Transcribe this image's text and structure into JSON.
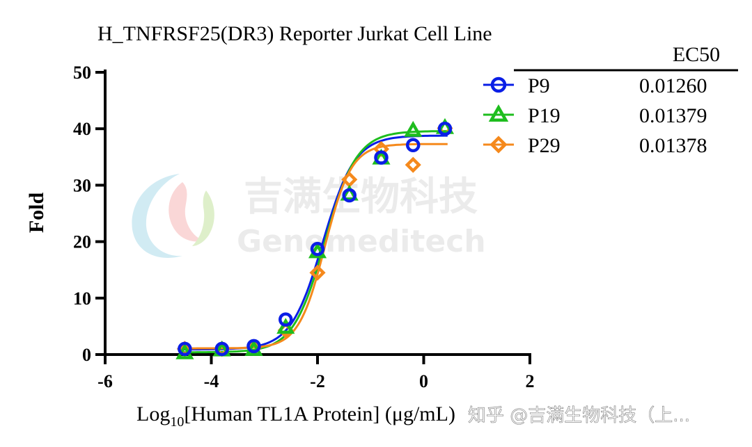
{
  "chart_data": {
    "type": "scatter",
    "title": "H_TNFRSF25(DR3) Reporter Jurkat Cell Line",
    "xlabel_prefix": "Log",
    "xlabel_sub": "10",
    "xlabel_rest": "[Human TL1A Protein] (μg/mL)",
    "ylabel": "Fold",
    "xlim": [
      -6,
      2
    ],
    "ylim": [
      0,
      50
    ],
    "x_ticks": [
      "-6",
      "-4",
      "-2",
      "0",
      "2"
    ],
    "y_ticks": [
      "0",
      "10",
      "20",
      "30",
      "40",
      "50"
    ],
    "legend_header": "EC50",
    "legend_position": "top-right",
    "series": [
      {
        "name": "P9",
        "ec50": "0.01260",
        "color": "#0a1ee6",
        "marker": "circle",
        "x": [
          -4.5,
          -3.8,
          -3.2,
          -2.6,
          -2.0,
          -1.4,
          -0.8,
          -0.2,
          0.4
        ],
        "y": [
          1.0,
          1.0,
          1.5,
          6.2,
          18.7,
          28.2,
          34.9,
          37.1,
          40.0
        ],
        "fit": {
          "bottom": 0.9,
          "top": 38.8,
          "logec50": -1.9,
          "hill": 1.45
        }
      },
      {
        "name": "P19",
        "ec50": "0.01379",
        "color": "#1ebd1e",
        "marker": "triangle",
        "x": [
          -4.5,
          -3.8,
          -3.2,
          -2.6,
          -2.0,
          -1.4,
          -0.8,
          -0.2,
          0.4
        ],
        "y": [
          0.3,
          0.8,
          0.9,
          4.8,
          18.2,
          28.4,
          34.8,
          39.7,
          40.2
        ],
        "fit": {
          "bottom": 0.4,
          "top": 39.6,
          "logec50": -1.86,
          "hill": 1.45
        }
      },
      {
        "name": "P29",
        "ec50": "0.01378",
        "color": "#f5891c",
        "marker": "diamond",
        "x": [
          -4.5,
          -3.8,
          -3.2,
          -2.6,
          -2.0,
          -1.4,
          -0.8,
          -0.2,
          0.4
        ],
        "y": [
          1.0,
          1.0,
          1.2,
          4.3,
          14.5,
          31.0,
          36.4,
          33.6,
          40.1
        ],
        "fit": {
          "bottom": 1.1,
          "top": 37.3,
          "logec50": -1.86,
          "hill": 1.75
        }
      }
    ]
  },
  "watermark": {
    "company_cn": "吉满生物科技",
    "company_en": "Genemeditech"
  },
  "footer": {
    "credit": "知乎 @吉满生物科技（上..."
  }
}
